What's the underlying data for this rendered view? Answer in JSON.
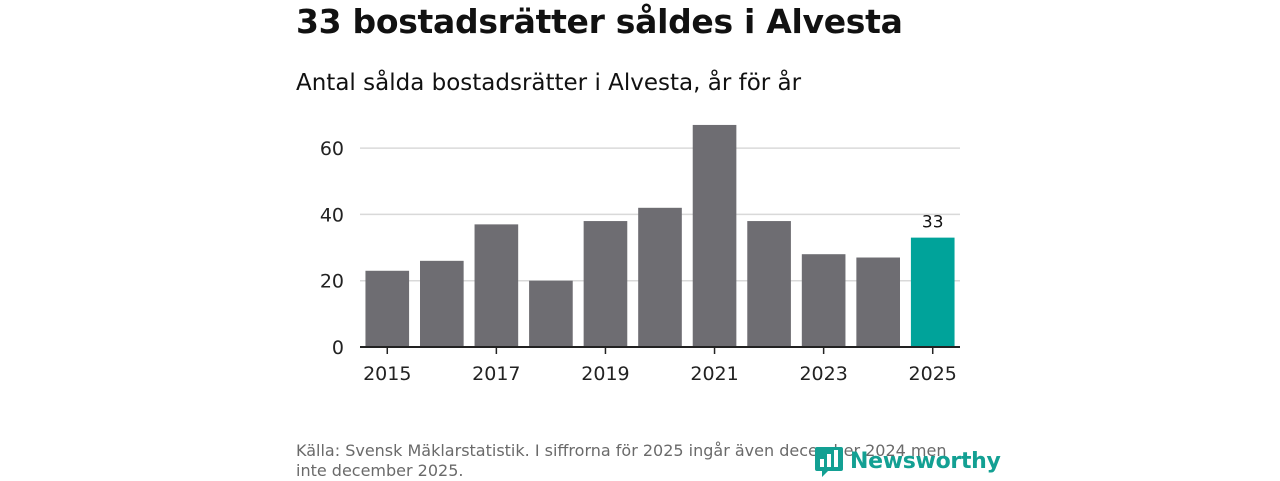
{
  "header": {
    "title": "33 bostadsrätter såldes i Alvesta",
    "subtitle": "Antal sålda bostadsrätter i Alvesta, år för år"
  },
  "footer": {
    "source": "Källa: Svensk Mäklarstatistik. I siffrorna för 2025 ingår även december 2024 men inte december 2025.",
    "brand": "Newsworthy",
    "brand_icon": "newsworthy-logo-icon"
  },
  "colors": {
    "bar": "#6e6d72",
    "highlight": "#00a39a",
    "grid": "#d9d9d9",
    "axis": "#222222",
    "brand": "#13a093"
  },
  "chart_data": {
    "type": "bar",
    "title": "Antal sålda bostadsrätter i Alvesta, år för år",
    "xlabel": "",
    "ylabel": "",
    "categories": [
      "2015",
      "2016",
      "2017",
      "2018",
      "2019",
      "2020",
      "2021",
      "2022",
      "2023",
      "2024",
      "2025"
    ],
    "values": [
      23,
      26,
      37,
      20,
      38,
      42,
      67,
      38,
      28,
      27,
      33
    ],
    "ylim": [
      0,
      70
    ],
    "yticks": [
      0,
      20,
      40,
      60
    ],
    "xtick_labels": [
      "2015",
      "2017",
      "2019",
      "2021",
      "2023",
      "2025"
    ],
    "highlight_category": "2025",
    "data_labels": [
      {
        "category": "2025",
        "text": "33"
      }
    ],
    "grid": true,
    "legend": "none"
  }
}
